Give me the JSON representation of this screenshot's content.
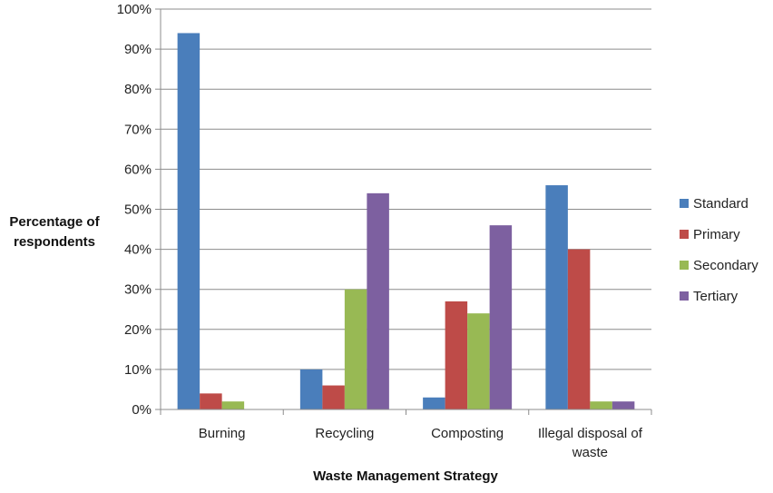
{
  "chart_data": {
    "type": "bar",
    "title": "",
    "xlabel": "Waste Management Strategy",
    "ylabel": [
      "Percentage of",
      "respondents"
    ],
    "ylim": [
      0,
      100
    ],
    "ytick_step": 10,
    "ytick_suffix": "%",
    "grid": true,
    "legend_position": "right",
    "categories": [
      [
        "Burning"
      ],
      [
        "Recycling"
      ],
      [
        "Composting"
      ],
      [
        "Illegal disposal of",
        "waste"
      ]
    ],
    "series": [
      {
        "name": "Standard",
        "color": "#4a7ebb",
        "values": [
          94,
          10,
          3,
          56
        ]
      },
      {
        "name": "Primary",
        "color": "#be4b48",
        "values": [
          4,
          6,
          27,
          40
        ]
      },
      {
        "name": "Secondary",
        "color": "#98b954",
        "values": [
          2,
          30,
          24,
          2
        ]
      },
      {
        "name": "Tertiary",
        "color": "#7d60a0",
        "values": [
          0,
          54,
          46,
          2
        ]
      }
    ]
  }
}
